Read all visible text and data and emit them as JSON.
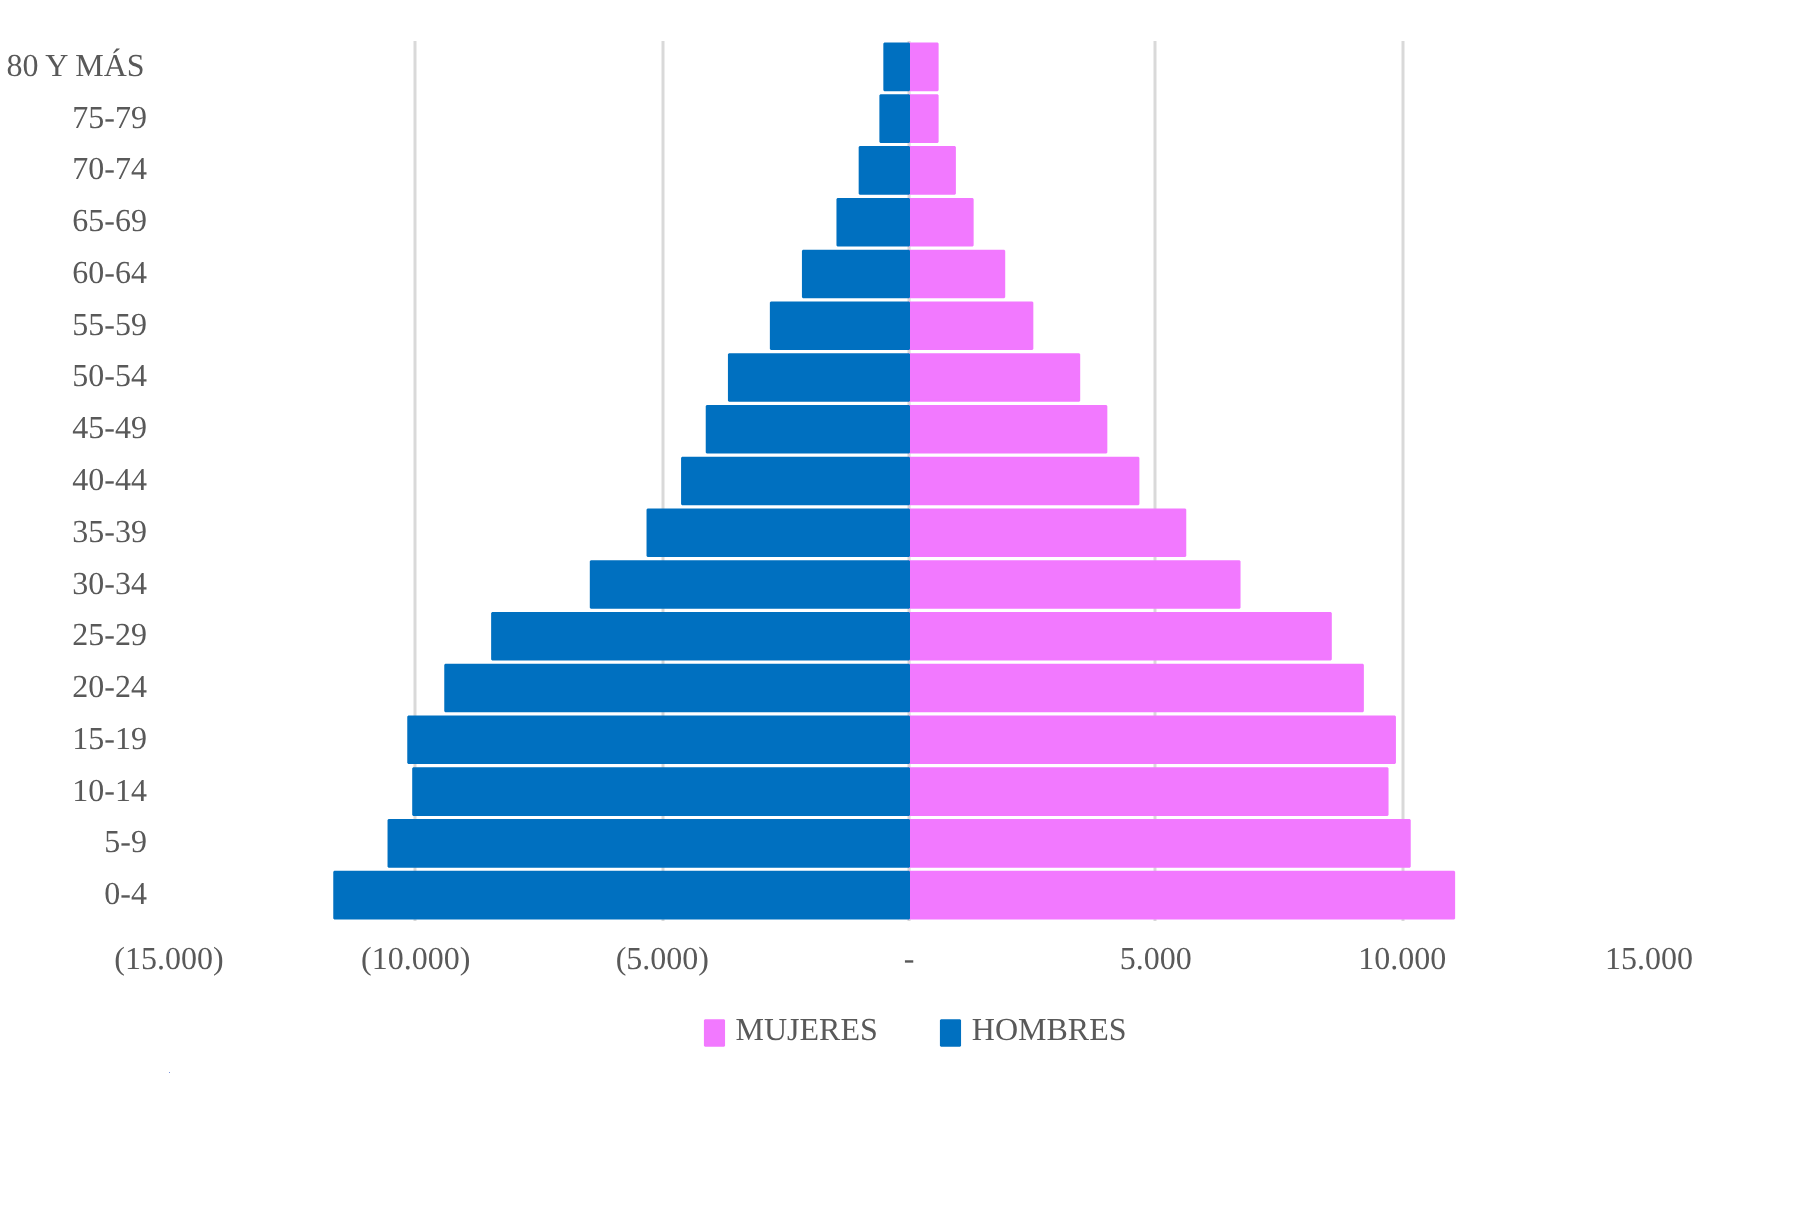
{
  "chart_data": {
    "type": "bar",
    "orientation": "horizontal",
    "categories": [
      "80 Y MÁS",
      "75-79",
      "70-74",
      "65-69",
      "60-64",
      "55-59",
      "50-54",
      "45-49",
      "40-44",
      "35-39",
      "30-34",
      "25-29",
      "20-24",
      "15-19",
      "10-14",
      "5-9",
      "0-4"
    ],
    "series": [
      {
        "name": "MUJERES",
        "color": "#f279ff",
        "values": [
          580,
          580,
          930,
          1290,
          1930,
          2500,
          3450,
          4000,
          4650,
          5600,
          6700,
          8550,
          9200,
          9850,
          9700,
          10150,
          11050
        ]
      },
      {
        "name": "HOMBRES",
        "color": "#0070c0",
        "values": [
          -500,
          -580,
          -1000,
          -1450,
          -2150,
          -2800,
          -3650,
          -4100,
          -4600,
          -5300,
          -6450,
          -8450,
          -9400,
          -10150,
          -10050,
          -10550,
          -11650
        ]
      }
    ],
    "xlim": [
      -15000,
      15000
    ],
    "xticks": [
      {
        "value": -15000,
        "label": "(15.000)"
      },
      {
        "value": -10000,
        "label": "(10.000)"
      },
      {
        "value": -5000,
        "label": "(5.000)"
      },
      {
        "value": 0,
        "label": "-"
      },
      {
        "value": 5000,
        "label": "5.000"
      },
      {
        "value": 10000,
        "label": "10.000"
      },
      {
        "value": 15000,
        "label": "15.000"
      }
    ],
    "grid": "x",
    "legend": "bottom",
    "stacked": true
  }
}
